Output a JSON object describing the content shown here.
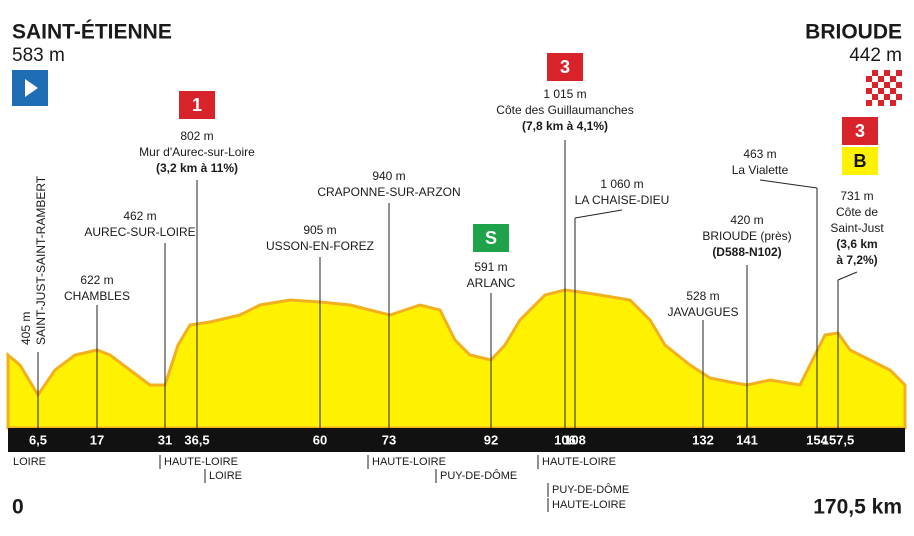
{
  "start": {
    "name": "SAINT-ÉTIENNE",
    "altitude": "583 m",
    "km": "0"
  },
  "finish": {
    "name": "BRIOUDE",
    "altitude": "442 m",
    "km": "170,5 km"
  },
  "km_markers": [
    "6,5",
    "17",
    "31",
    "36,5",
    "60",
    "73",
    "92",
    "106",
    "108",
    "132",
    "141",
    "154",
    "157,5"
  ],
  "points": [
    {
      "lines": [
        "405 m",
        "SAINT-JUST-SAINT-RAMBERT"
      ]
    },
    {
      "lines": [
        "622 m",
        "CHAMBLES"
      ]
    },
    {
      "lines": [
        "462 m",
        "AUREC-SUR-LOIRE"
      ]
    },
    {
      "badge": "1",
      "lines": [
        "802 m",
        "Mur d'Aurec-sur-Loire",
        "(3,2 km à 11%)"
      ]
    },
    {
      "lines": [
        "905 m",
        "USSON-EN-FOREZ"
      ]
    },
    {
      "lines": [
        "940 m",
        "CRAPONNE-SUR-ARZON"
      ]
    },
    {
      "badge": "S",
      "lines": [
        "591 m",
        "ARLANC"
      ]
    },
    {
      "badge": "3",
      "lines": [
        "1 015 m",
        "Côte des Guillaumanches",
        "(7,8 km à 4,1%)"
      ]
    },
    {
      "lines": [
        "1 060 m",
        "LA CHAISE-DIEU"
      ]
    },
    {
      "lines": [
        "528 m",
        "JAVAUGUES"
      ]
    },
    {
      "lines": [
        "420 m",
        "BRIOUDE (près)",
        "(D588-N102)"
      ]
    },
    {
      "lines": [
        "463 m",
        "La Vialette"
      ]
    },
    {
      "badges": [
        "3",
        "B"
      ],
      "lines": [
        "731 m",
        "Côte de",
        "Saint-Just",
        "(3,6 km",
        "à 7,2%)"
      ]
    }
  ],
  "departments": [
    "LOIRE",
    "HAUTE-LOIRE",
    "LOIRE",
    "HAUTE-LOIRE",
    "PUY-DE-DÔME",
    "HAUTE-LOIRE",
    "PUY-DE-DÔME",
    "HAUTE-LOIRE"
  ]
}
